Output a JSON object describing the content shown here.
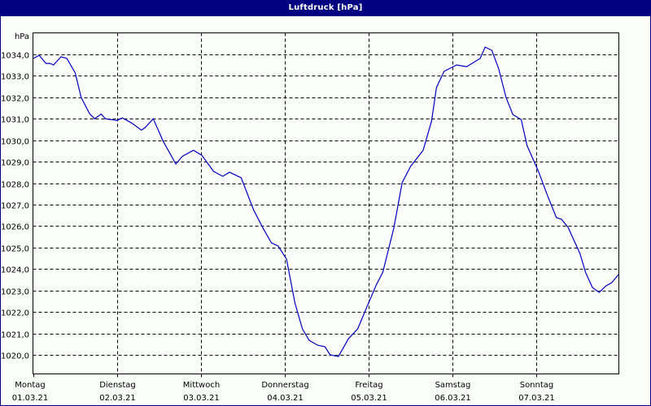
{
  "window": {
    "title": "Luftdruck [hPa]",
    "frame_color": "#000080",
    "background": "#FAFDFA"
  },
  "chart_data": {
    "type": "line",
    "title": "Luftdruck [hPa]",
    "xlabel": "",
    "ylabel": "hPa",
    "ylim": [
      1019.1,
      1034.9
    ],
    "grid": true,
    "legend": null,
    "line_color": "#0000C0",
    "yticks": [
      "1020,0",
      "1021,0",
      "1022,0",
      "1023,0",
      "1024,0",
      "1025,0",
      "1026,0",
      "1027,0",
      "1028,0",
      "1029,0",
      "1030,0",
      "1031,0",
      "1032,0",
      "1033,0",
      "1034,0"
    ],
    "ytick_values": [
      1020,
      1021,
      1022,
      1023,
      1024,
      1025,
      1026,
      1027,
      1028,
      1029,
      1030,
      1031,
      1032,
      1033,
      1034
    ],
    "xticks": [
      {
        "day": "Montag",
        "date": "01.03.21"
      },
      {
        "day": "Dienstag",
        "date": "02.03.21"
      },
      {
        "day": "Mittwoch",
        "date": "03.03.21"
      },
      {
        "day": "Donnerstag",
        "date": "04.03.21"
      },
      {
        "day": "Freitag",
        "date": "05.03.21"
      },
      {
        "day": "Samstag",
        "date": "06.03.21"
      },
      {
        "day": "Sonntag",
        "date": "07.03.21"
      }
    ],
    "xlim_days": [
      0,
      6.99
    ],
    "series": [
      {
        "name": "Luftdruck",
        "x_days": [
          0.0,
          0.07,
          0.15,
          0.2,
          0.24,
          0.33,
          0.4,
          0.5,
          0.57,
          0.67,
          0.73,
          0.81,
          0.86,
          1.0,
          1.06,
          1.17,
          1.29,
          1.33,
          1.43,
          1.55,
          1.7,
          1.78,
          1.91,
          2.01,
          2.15,
          2.26,
          2.34,
          2.48,
          2.63,
          2.75,
          2.84,
          2.92,
          3.02,
          3.12,
          3.21,
          3.29,
          3.39,
          3.48,
          3.54,
          3.64,
          3.76,
          3.87,
          3.99,
          4.09,
          4.17,
          4.3,
          4.4,
          4.5,
          4.65,
          4.75,
          4.81,
          4.9,
          5.05,
          5.17,
          5.33,
          5.39,
          5.47,
          5.55,
          5.64,
          5.72,
          5.82,
          5.89,
          6.03,
          6.13,
          6.24,
          6.3,
          6.38,
          6.52,
          6.59,
          6.67,
          6.75,
          6.83,
          6.9,
          6.98
        ],
        "values": [
          1033.81,
          1033.96,
          1033.58,
          1033.58,
          1033.51,
          1033.89,
          1033.81,
          1033.13,
          1032.0,
          1031.24,
          1031.0,
          1031.22,
          1031.0,
          1030.92,
          1031.04,
          1030.81,
          1030.47,
          1030.58,
          1031.0,
          1029.94,
          1028.89,
          1029.26,
          1029.53,
          1029.3,
          1028.55,
          1028.32,
          1028.51,
          1028.25,
          1026.73,
          1025.83,
          1025.22,
          1025.07,
          1024.46,
          1022.42,
          1021.21,
          1020.68,
          1020.45,
          1020.38,
          1020.0,
          1019.92,
          1020.76,
          1021.21,
          1022.34,
          1023.25,
          1023.86,
          1025.9,
          1028.02,
          1028.78,
          1029.53,
          1030.89,
          1032.46,
          1033.21,
          1033.51,
          1033.43,
          1033.81,
          1034.34,
          1034.19,
          1033.36,
          1031.99,
          1031.2,
          1030.96,
          1029.75,
          1028.51,
          1027.46,
          1026.4,
          1026.32,
          1025.94,
          1024.73,
          1023.82,
          1023.14,
          1022.91,
          1023.21,
          1023.36,
          1023.74
        ]
      }
    ]
  }
}
